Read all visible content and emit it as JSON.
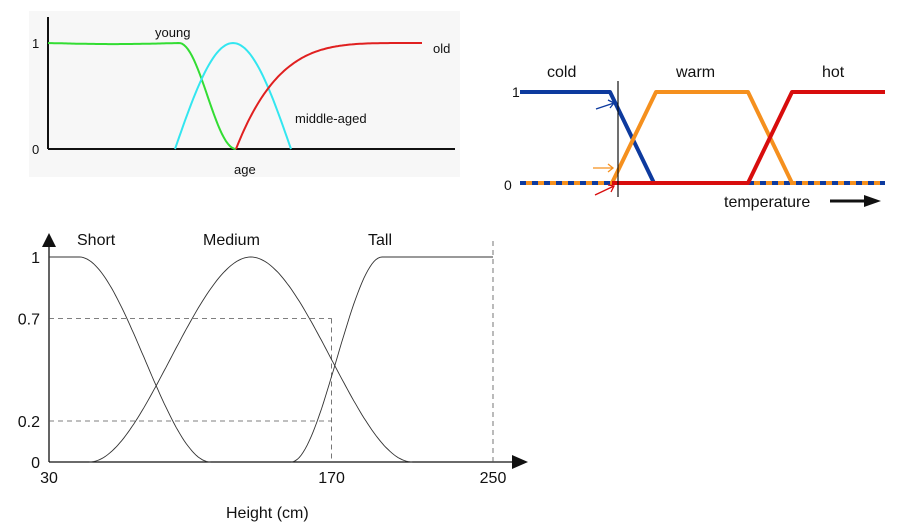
{
  "chart_data": [
    {
      "id": "age",
      "type": "line",
      "title": "",
      "xlabel": "age",
      "ylabel": "",
      "y_ticks": [
        "0",
        "1"
      ],
      "ylim": [
        0,
        1
      ],
      "series": [
        {
          "name": "young",
          "color": "#33dd33",
          "shape": "flat-then-falling-to-zero"
        },
        {
          "name": "middle-aged",
          "color": "#33e6f0",
          "shape": "bell"
        },
        {
          "name": "old",
          "color": "#e02020",
          "shape": "rising-from-zero-to-one"
        }
      ]
    },
    {
      "id": "temperature",
      "type": "line",
      "title": "",
      "xlabel": "temperature",
      "ylabel": "",
      "y_ticks": [
        "0",
        "1"
      ],
      "ylim": [
        0,
        1
      ],
      "grid": false,
      "series": [
        {
          "name": "cold",
          "color": "#0d3a9e",
          "shape": "trapezoid-left"
        },
        {
          "name": "warm",
          "color": "#f5901e",
          "shape": "trapezoid"
        },
        {
          "name": "hot",
          "color": "#d80d0d",
          "shape": "trapezoid-right"
        }
      ],
      "marker": {
        "type": "vertical-line",
        "arrow_colors": [
          "#0d3a9e",
          "#f5901e",
          "#d80d0d"
        ]
      }
    },
    {
      "id": "height",
      "type": "line",
      "title": "",
      "xlabel": "Height (cm)",
      "ylabel": "",
      "x_ticks": [
        30,
        170,
        250
      ],
      "y_ticks": [
        "0",
        "0.2",
        "0.7",
        "1"
      ],
      "xlim": [
        30,
        250
      ],
      "ylim": [
        0,
        1
      ],
      "series": [
        {
          "name": "Short",
          "color": "#333333",
          "x": [
            30,
            45,
            110
          ],
          "y": [
            1,
            1,
            0
          ]
        },
        {
          "name": "Medium",
          "color": "#333333",
          "x": [
            50,
            130,
            210
          ],
          "y": [
            0,
            1,
            0
          ]
        },
        {
          "name": "Tall",
          "color": "#333333",
          "x": [
            150,
            195,
            250
          ],
          "y": [
            0,
            1,
            1
          ]
        }
      ],
      "reference_lines": {
        "x": [
          170,
          250
        ],
        "y": [
          0.7,
          0.2
        ]
      }
    }
  ]
}
